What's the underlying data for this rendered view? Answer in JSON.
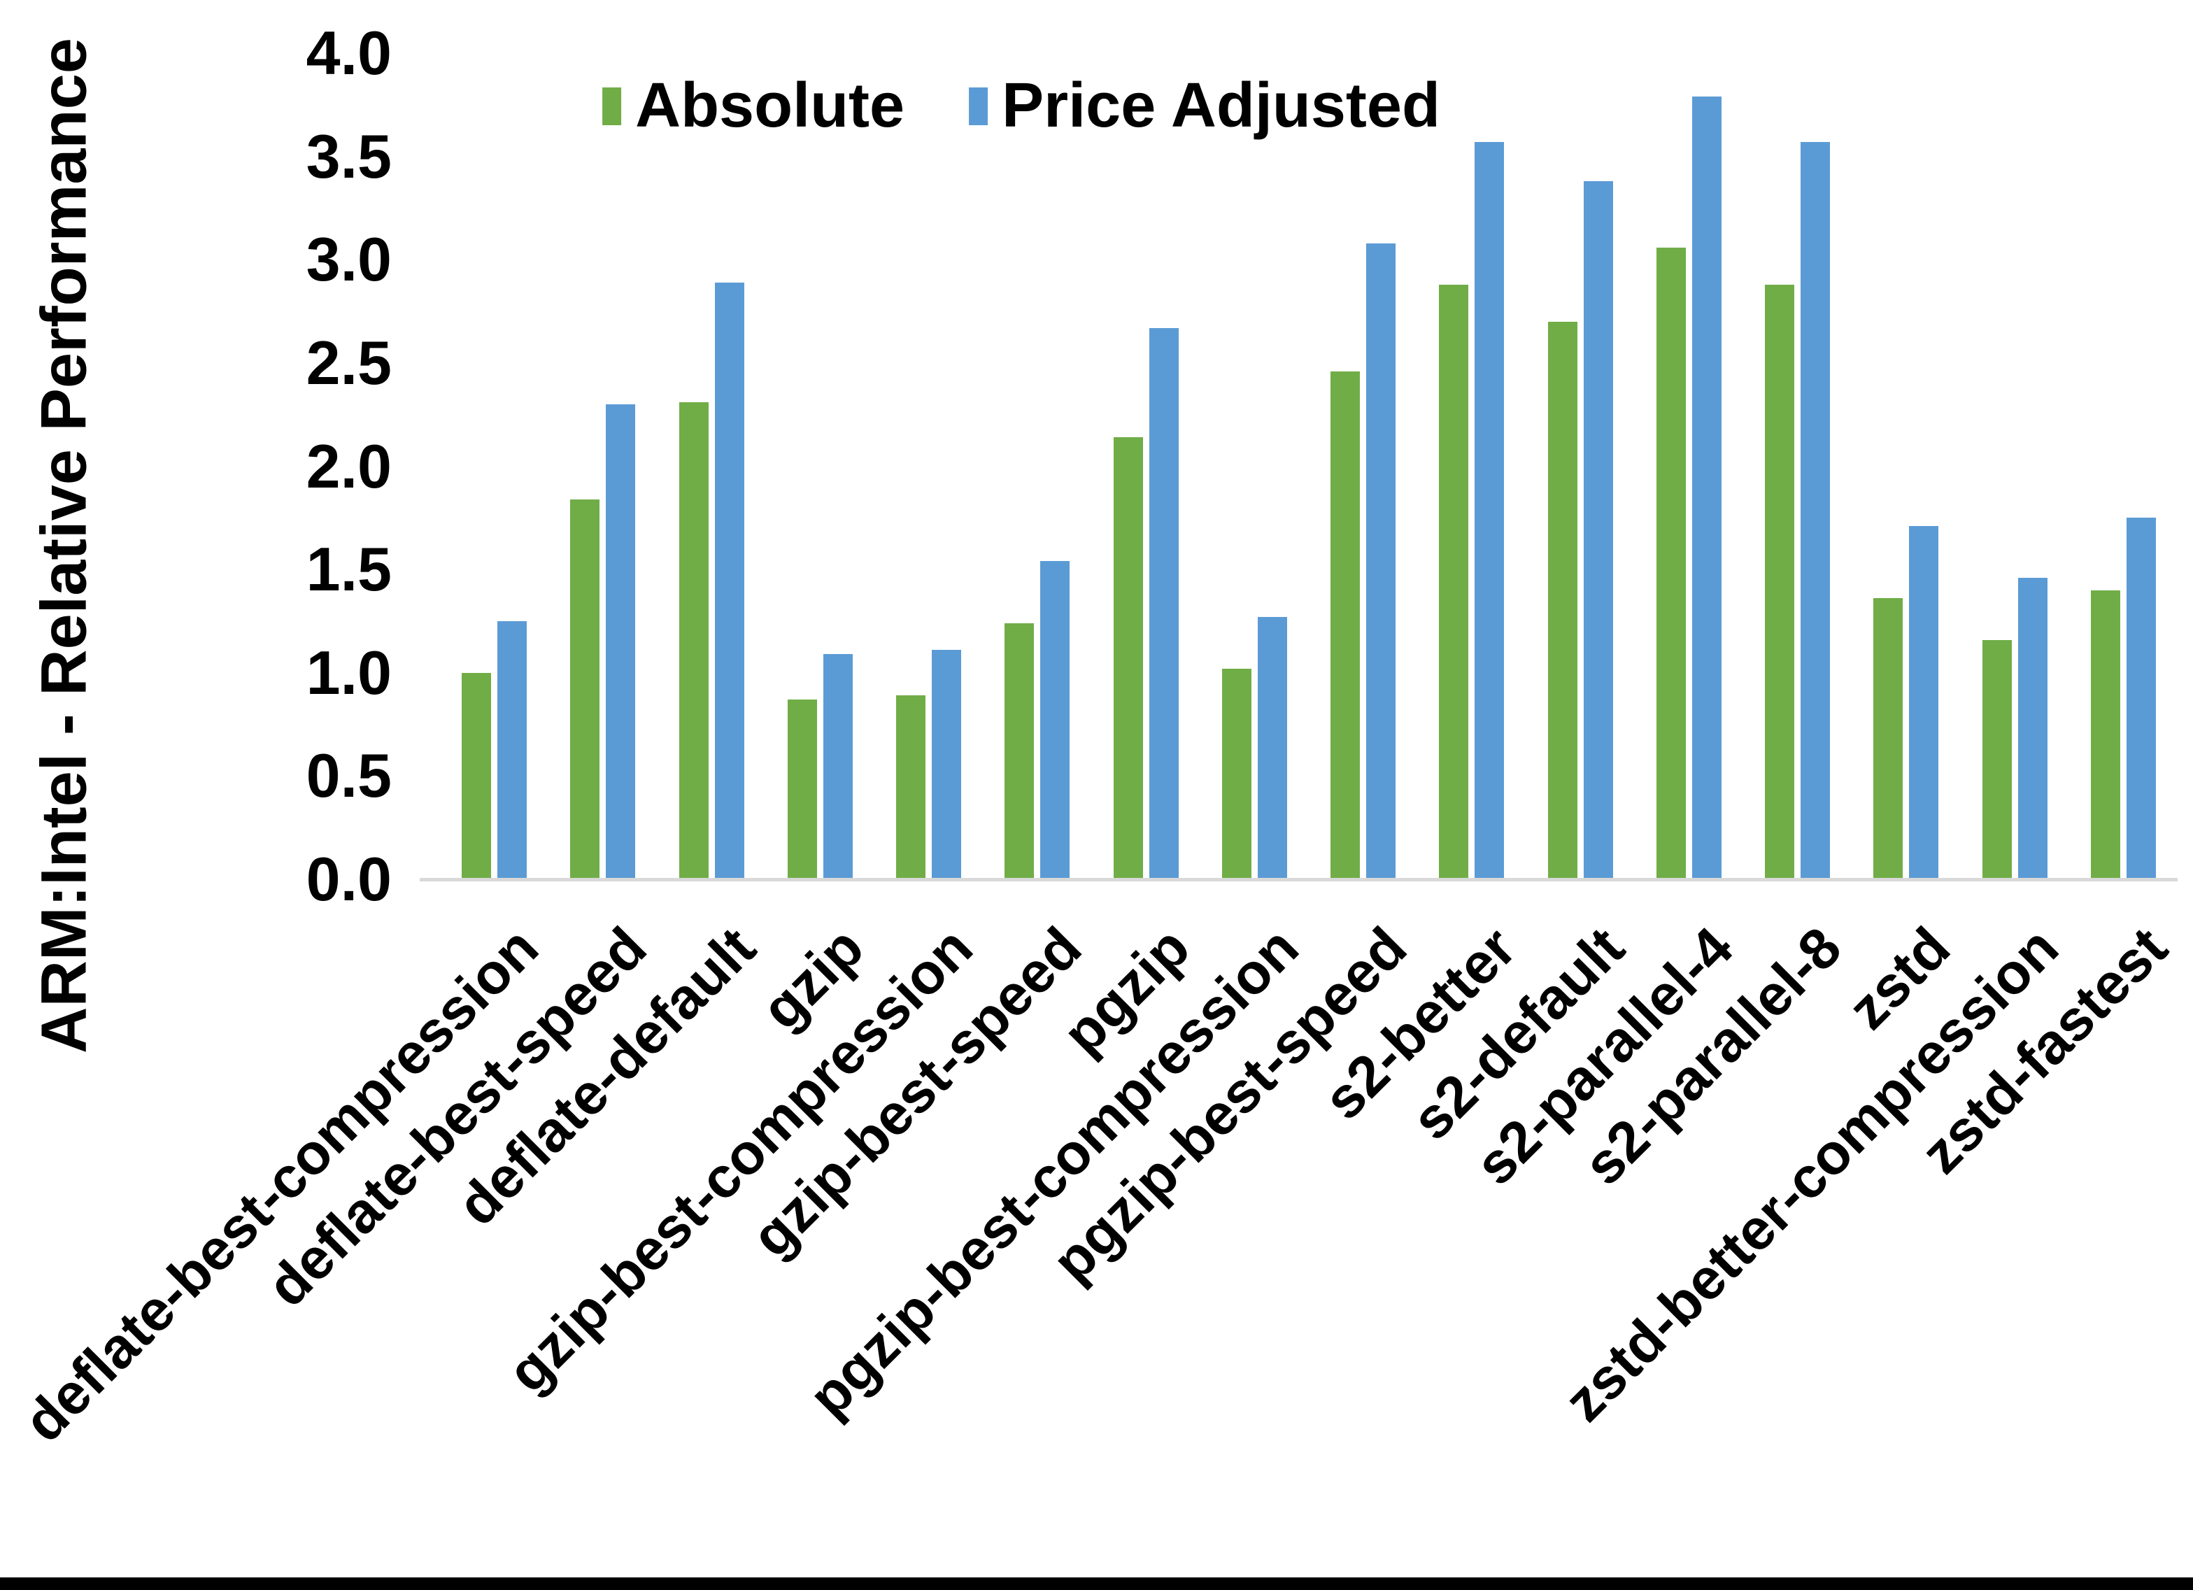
{
  "y_axis": {
    "title": "ARM:Intel - Relative Performance",
    "ticks": [
      "0.0",
      "0.5",
      "1.0",
      "1.5",
      "2.0",
      "2.5",
      "3.0",
      "3.5",
      "4.0"
    ],
    "max": 4.0
  },
  "legend": {
    "items": [
      {
        "label": "Absolute",
        "color": "#70AD47"
      },
      {
        "label": "Price Adjusted",
        "color": "#5B9BD5"
      }
    ]
  },
  "colors": {
    "absolute_green": "#70AD47",
    "price_adjusted_blue": "#5B9BD5",
    "axis_line": "#D9D9D9",
    "bottom_border": "#000000"
  },
  "chart_data": {
    "type": "bar",
    "title": "",
    "xlabel": "",
    "ylabel": "ARM:Intel - Relative Performance",
    "ylim": [
      0,
      4
    ],
    "grid": false,
    "legend_position": "top-center",
    "categories": [
      "deflate-best-compression",
      "deflate-best-speed",
      "deflate-default",
      "gzip",
      "gzip-best-compression",
      "gzip-best-speed",
      "pgzip",
      "pgzip-best-compression",
      "pgzip-best-speed",
      "s2-better",
      "s2-default",
      "s2-parallel-4",
      "s2-parallel-8",
      "zstd",
      "zstd-better-compression",
      "zstd-fastest"
    ],
    "series": [
      {
        "name": "Absolute",
        "color": "#70AD47",
        "values": [
          1.0,
          1.84,
          2.31,
          0.87,
          0.89,
          1.24,
          2.14,
          1.02,
          2.46,
          2.88,
          2.7,
          3.06,
          2.88,
          1.36,
          1.16,
          1.4
        ]
      },
      {
        "name": "Price Adjusted",
        "color": "#5B9BD5",
        "values": [
          1.25,
          2.3,
          2.89,
          1.09,
          1.11,
          1.54,
          2.67,
          1.27,
          3.08,
          3.57,
          3.38,
          3.79,
          3.57,
          1.71,
          1.46,
          1.75
        ]
      }
    ]
  }
}
